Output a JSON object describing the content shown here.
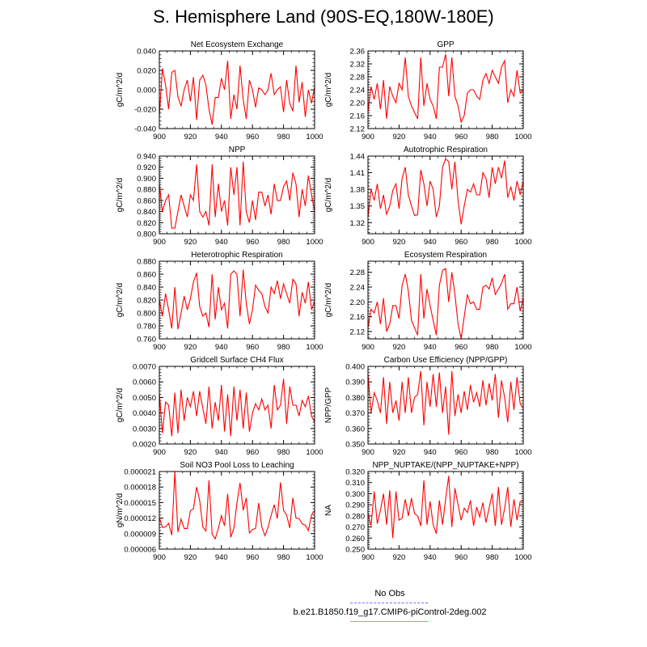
{
  "title": "S. Hemisphere Land (90S-EQ,180W-180E)",
  "legend": {
    "obs_label": "No Obs",
    "obs_color": "#6a6aff",
    "case_label": "b.e21.B1850.f19_g17.CMIP6-piControl-2deg.002",
    "case_color": "#ff0000"
  },
  "chart_data": [
    {
      "type": "line",
      "title": "Net Ecosystem Exchange",
      "ylabel": "gC/m^2/d",
      "xlim": [
        900,
        1000
      ],
      "ylim": [
        -0.04,
        0.04
      ],
      "xticks": [
        "900",
        "920",
        "940",
        "960",
        "980",
        "1000"
      ],
      "yticks": [
        "-0.040",
        "-0.020",
        "0.000",
        "0.020",
        "0.040"
      ],
      "x_start": 900,
      "x_step": 2,
      "values": [
        -0.028,
        0.022,
        0.005,
        -0.02,
        0.018,
        0.02,
        -0.007,
        -0.017,
        0.0,
        0.01,
        -0.012,
        0.013,
        -0.031,
        0.01,
        0.015,
        0.005,
        -0.02,
        -0.036,
        -0.008,
        -0.008,
        0.012,
        0.0,
        0.03,
        -0.03,
        -0.005,
        -0.02,
        0.025,
        -0.01,
        -0.03,
        0.01,
        0.0,
        -0.018,
        0.002,
        0.0,
        -0.005,
        0.0,
        0.017,
        -0.005,
        0.0,
        0.003,
        -0.023,
        0.01,
        -0.014,
        -0.022,
        0.025,
        -0.013,
        0.008,
        -0.028,
        0.0,
        -0.014,
        0.003
      ]
    },
    {
      "type": "line",
      "title": "GPP",
      "ylabel": "gC/m^2/d",
      "xlim": [
        900,
        1000
      ],
      "ylim": [
        2.12,
        2.36
      ],
      "xticks": [
        "900",
        "920",
        "940",
        "960",
        "980",
        "1000"
      ],
      "yticks": [
        "2.12",
        "2.16",
        "2.20",
        "2.24",
        "2.28",
        "2.32",
        "2.36"
      ],
      "x_start": 900,
      "x_step": 2,
      "values": [
        2.17,
        2.25,
        2.21,
        2.26,
        2.18,
        2.27,
        2.15,
        2.25,
        2.22,
        2.2,
        2.26,
        2.24,
        2.34,
        2.22,
        2.19,
        2.17,
        2.15,
        2.34,
        2.19,
        2.26,
        2.21,
        2.19,
        2.15,
        2.31,
        2.31,
        2.35,
        2.22,
        2.34,
        2.22,
        2.19,
        2.14,
        2.16,
        2.23,
        2.24,
        2.24,
        2.22,
        2.21,
        2.27,
        2.29,
        2.26,
        2.3,
        2.28,
        2.26,
        2.31,
        2.33,
        2.2,
        2.24,
        2.22,
        2.3,
        2.23,
        2.24
      ]
    },
    {
      "type": "line",
      "title": "NPP",
      "ylabel": "gC/m^2/d",
      "xlim": [
        900,
        1000
      ],
      "ylim": [
        0.8,
        0.94
      ],
      "xticks": [
        "900",
        "920",
        "940",
        "960",
        "980",
        "1000"
      ],
      "yticks": [
        "0.800",
        "0.820",
        "0.840",
        "0.860",
        "0.880",
        "0.900",
        "0.920",
        "0.940"
      ],
      "x_start": 900,
      "x_step": 2,
      "values": [
        0.89,
        0.84,
        0.86,
        0.87,
        0.81,
        0.81,
        0.84,
        0.87,
        0.85,
        0.83,
        0.87,
        0.86,
        0.925,
        0.84,
        0.83,
        0.84,
        0.815,
        0.925,
        0.83,
        0.89,
        0.84,
        0.86,
        0.815,
        0.92,
        0.87,
        0.92,
        0.815,
        0.93,
        0.84,
        0.82,
        0.86,
        0.825,
        0.875,
        0.875,
        0.85,
        0.87,
        0.835,
        0.89,
        0.86,
        0.86,
        0.885,
        0.895,
        0.86,
        0.91,
        0.89,
        0.83,
        0.88,
        0.85,
        0.905,
        0.87,
        0.84
      ]
    },
    {
      "type": "line",
      "title": "Autotrophic Respiration",
      "ylabel": "gC/m^2/d",
      "xlim": [
        900,
        1000
      ],
      "ylim": [
        1.3,
        1.44
      ],
      "xticks": [
        "900",
        "920",
        "940",
        "960",
        "980",
        "1000"
      ],
      "yticks": [
        "1.32",
        "1.35",
        "1.38",
        "1.41",
        "1.44"
      ],
      "x_start": 900,
      "x_step": 2,
      "values": [
        1.33,
        1.38,
        1.36,
        1.39,
        1.345,
        1.37,
        1.335,
        1.35,
        1.378,
        1.39,
        1.345,
        1.4,
        1.42,
        1.37,
        1.35,
        1.333,
        1.334,
        1.415,
        1.39,
        1.35,
        1.395,
        1.38,
        1.33,
        1.35,
        1.42,
        1.435,
        1.43,
        1.38,
        1.43,
        1.36,
        1.317,
        1.35,
        1.38,
        1.375,
        1.39,
        1.37,
        1.37,
        1.41,
        1.4,
        1.365,
        1.42,
        1.39,
        1.42,
        1.4,
        1.432,
        1.365,
        1.385,
        1.36,
        1.395,
        1.37,
        1.395
      ]
    },
    {
      "type": "line",
      "title": "Heterotrophic Respiration",
      "ylabel": "gC/m^2/d",
      "xlim": [
        900,
        1000
      ],
      "ylim": [
        0.76,
        0.88
      ],
      "xticks": [
        "900",
        "920",
        "940",
        "960",
        "980",
        "1000"
      ],
      "yticks": [
        "0.760",
        "0.780",
        "0.800",
        "0.820",
        "0.840",
        "0.860",
        "0.880"
      ],
      "x_start": 900,
      "x_step": 2,
      "values": [
        0.82,
        0.795,
        0.83,
        0.805,
        0.776,
        0.84,
        0.775,
        0.8,
        0.826,
        0.805,
        0.822,
        0.848,
        0.862,
        0.81,
        0.795,
        0.8,
        0.778,
        0.86,
        0.79,
        0.84,
        0.805,
        0.815,
        0.776,
        0.86,
        0.865,
        0.86,
        0.795,
        0.867,
        0.815,
        0.783,
        0.805,
        0.843,
        0.835,
        0.83,
        0.81,
        0.8,
        0.84,
        0.83,
        0.85,
        0.822,
        0.845,
        0.83,
        0.815,
        0.852,
        0.845,
        0.795,
        0.832,
        0.815,
        0.848,
        0.805,
        0.818
      ]
    },
    {
      "type": "line",
      "title": "Ecosystem Respiration",
      "ylabel": "gC/m^2/d",
      "xlim": [
        900,
        1000
      ],
      "ylim": [
        2.1,
        2.31
      ],
      "xticks": [
        "900",
        "920",
        "940",
        "960",
        "980",
        "1000"
      ],
      "yticks": [
        "2.12",
        "2.16",
        "2.20",
        "2.24",
        "2.28"
      ],
      "x_start": 900,
      "x_step": 2,
      "values": [
        2.13,
        2.18,
        2.17,
        2.2,
        2.14,
        2.21,
        2.12,
        2.14,
        2.19,
        2.19,
        2.155,
        2.245,
        2.275,
        2.23,
        2.15,
        2.13,
        2.11,
        2.275,
        2.155,
        2.235,
        2.19,
        2.15,
        2.11,
        2.245,
        2.285,
        2.29,
        2.2,
        2.28,
        2.22,
        2.14,
        2.1,
        2.16,
        2.22,
        2.195,
        2.2,
        2.18,
        2.18,
        2.24,
        2.245,
        2.235,
        2.265,
        2.22,
        2.235,
        2.25,
        2.275,
        2.18,
        2.195,
        2.195,
        2.24,
        2.175,
        2.21
      ]
    },
    {
      "type": "line",
      "title": "Gridcell Surface CH4 Flux",
      "ylabel": "gC/m^2/d",
      "xlim": [
        900,
        1000
      ],
      "ylim": [
        0.002,
        0.007
      ],
      "xticks": [
        "900",
        "920",
        "940",
        "960",
        "980",
        "1000"
      ],
      "yticks": [
        "0.0020",
        "0.0030",
        "0.0040",
        "0.0050",
        "0.0060",
        "0.0070"
      ],
      "x_start": 900,
      "x_step": 2,
      "values": [
        0.0053,
        0.0027,
        0.0047,
        0.0045,
        0.0025,
        0.0053,
        0.0027,
        0.0055,
        0.0035,
        0.005,
        0.0044,
        0.0054,
        0.0038,
        0.0054,
        0.0043,
        0.0033,
        0.0057,
        0.003,
        0.0047,
        0.0035,
        0.0058,
        0.0028,
        0.0052,
        0.0025,
        0.0057,
        0.0035,
        0.0055,
        0.003,
        0.0053,
        0.0028,
        0.004,
        0.0046,
        0.0042,
        0.0049,
        0.0042,
        0.0045,
        0.003,
        0.0058,
        0.0042,
        0.0045,
        0.0062,
        0.0033,
        0.0057,
        0.0045,
        0.0045,
        0.0038,
        0.0048,
        0.0044,
        0.0051,
        0.0038,
        0.0034
      ]
    },
    {
      "type": "line",
      "title": "Carbon Use Efficiency (NPP/GPP)",
      "ylabel": "NPP/GPP",
      "xlim": [
        900,
        1000
      ],
      "ylim": [
        0.35,
        0.4
      ],
      "xticks": [
        "900",
        "920",
        "940",
        "960",
        "980",
        "1000"
      ],
      "yticks": [
        "0.350",
        "0.360",
        "0.370",
        "0.380",
        "0.390",
        "0.400"
      ],
      "x_start": 900,
      "x_step": 2,
      "values": [
        0.395,
        0.37,
        0.383,
        0.378,
        0.37,
        0.393,
        0.363,
        0.39,
        0.37,
        0.378,
        0.365,
        0.39,
        0.37,
        0.393,
        0.37,
        0.38,
        0.382,
        0.397,
        0.362,
        0.39,
        0.374,
        0.395,
        0.374,
        0.396,
        0.37,
        0.387,
        0.356,
        0.397,
        0.368,
        0.382,
        0.37,
        0.384,
        0.372,
        0.388,
        0.377,
        0.383,
        0.374,
        0.391,
        0.375,
        0.389,
        0.378,
        0.395,
        0.367,
        0.391,
        0.38,
        0.364,
        0.39,
        0.372,
        0.393,
        0.376,
        0.373
      ]
    },
    {
      "type": "line",
      "title": "Soil NO3 Pool Loss to Leaching",
      "ylabel": "gN/m^2/d",
      "xlim": [
        900,
        1000
      ],
      "ylim": [
        6e-06,
        2.1e-05
      ],
      "xticks": [
        "900",
        "920",
        "940",
        "960",
        "980",
        "1000"
      ],
      "yticks": [
        "0.000006",
        "0.000009",
        "0.000012",
        "0.000015",
        "0.000018",
        "0.000021"
      ],
      "x_start": 900,
      "x_step": 2,
      "values": [
        1.22e-05,
        1.02e-05,
        1.03e-05,
        1.1e-05,
        8.7e-06,
        2.1e-05,
        9.3e-06,
        1.18e-05,
        1e-05,
        1e-05,
        1.34e-05,
        1.38e-05,
        1.8e-05,
        1.54e-05,
        1.03e-05,
        9.5e-06,
        1.93e-05,
        8.9e-06,
        8e-06,
        1e-05,
        1.25e-05,
        1.05e-05,
        1.67e-05,
        8.3e-06,
        1e-05,
        1.49e-05,
        1.88e-05,
        1.35e-05,
        1.59e-05,
        9.1e-06,
        9.8e-06,
        1e-05,
        1.49e-05,
        1.03e-05,
        8.6e-06,
        1.02e-05,
        1.25e-05,
        1.46e-05,
        1.19e-05,
        1.89e-05,
        1.35e-05,
        1.26e-05,
        1.01e-05,
        1.59e-05,
        1.2e-05,
        1.19e-05,
        1.09e-05,
        1.06e-05,
        9.6e-06,
        1.26e-05,
        1.35e-05
      ]
    },
    {
      "type": "line",
      "title": "NPP_NUPTAKE/(NPP_NUPTAKE+NPP)",
      "ylabel": "NA",
      "xlim": [
        900,
        1000
      ],
      "ylim": [
        0.25,
        0.32
      ],
      "xticks": [
        "900",
        "920",
        "940",
        "960",
        "980",
        "1000"
      ],
      "yticks": [
        "0.250",
        "0.260",
        "0.270",
        "0.280",
        "0.290",
        "0.300",
        "0.310",
        "0.320"
      ],
      "x_start": 900,
      "x_step": 2,
      "values": [
        0.282,
        0.271,
        0.302,
        0.273,
        0.285,
        0.3,
        0.272,
        0.303,
        0.26,
        0.302,
        0.276,
        0.278,
        0.295,
        0.28,
        0.296,
        0.282,
        0.28,
        0.271,
        0.312,
        0.272,
        0.293,
        0.272,
        0.264,
        0.294,
        0.272,
        0.295,
        0.316,
        0.27,
        0.305,
        0.29,
        0.276,
        0.287,
        0.283,
        0.294,
        0.271,
        0.288,
        0.279,
        0.292,
        0.274,
        0.287,
        0.3,
        0.271,
        0.306,
        0.272,
        0.287,
        0.306,
        0.27,
        0.295,
        0.276,
        0.293,
        0.293
      ]
    }
  ]
}
